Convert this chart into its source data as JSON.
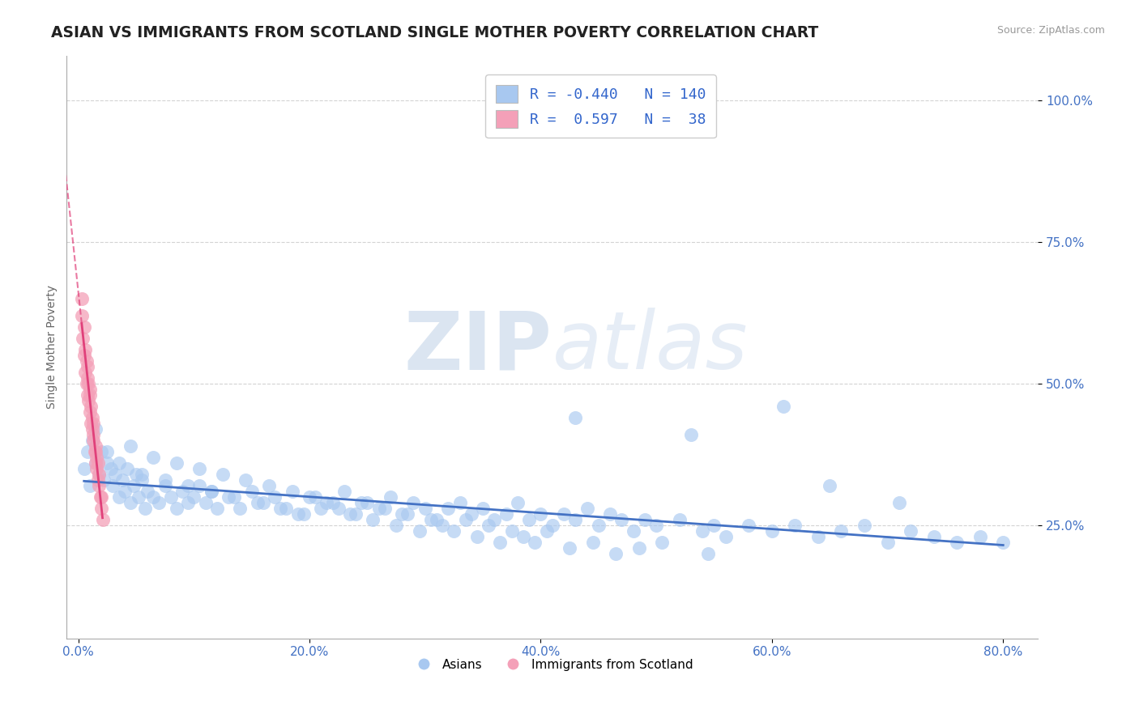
{
  "title": "ASIAN VS IMMIGRANTS FROM SCOTLAND SINGLE MOTHER POVERTY CORRELATION CHART",
  "source": "Source: ZipAtlas.com",
  "xlabel_ticks": [
    "0.0%",
    "20.0%",
    "40.0%",
    "60.0%",
    "80.0%"
  ],
  "xlabel_tick_vals": [
    0.0,
    0.2,
    0.4,
    0.6,
    0.8
  ],
  "ylabel": "Single Mother Poverty",
  "ylabel_ticks": [
    "25.0%",
    "50.0%",
    "75.0%",
    "100.0%"
  ],
  "ylabel_tick_vals": [
    0.25,
    0.5,
    0.75,
    1.0
  ],
  "xlim": [
    -0.01,
    0.83
  ],
  "ylim": [
    0.05,
    1.08
  ],
  "blue_R": -0.44,
  "blue_N": 140,
  "pink_R": 0.597,
  "pink_N": 38,
  "blue_color": "#a8c8f0",
  "pink_color": "#f4a0b8",
  "blue_line_color": "#4472c4",
  "pink_line_color": "#e0407a",
  "grid_color": "#c8c8c8",
  "bg_color": "#ffffff",
  "watermark_zip": "ZIP",
  "watermark_atlas": "atlas",
  "title_fontsize": 13.5,
  "axis_label_fontsize": 10,
  "tick_fontsize": 11,
  "legend_fontsize": 13,
  "blue_scatter_x": [
    0.005,
    0.008,
    0.01,
    0.012,
    0.015,
    0.018,
    0.02,
    0.022,
    0.025,
    0.028,
    0.03,
    0.032,
    0.035,
    0.038,
    0.04,
    0.042,
    0.045,
    0.048,
    0.05,
    0.052,
    0.055,
    0.058,
    0.06,
    0.065,
    0.07,
    0.075,
    0.08,
    0.085,
    0.09,
    0.095,
    0.1,
    0.105,
    0.11,
    0.115,
    0.12,
    0.13,
    0.14,
    0.15,
    0.16,
    0.17,
    0.18,
    0.19,
    0.2,
    0.21,
    0.22,
    0.23,
    0.24,
    0.25,
    0.26,
    0.27,
    0.28,
    0.29,
    0.3,
    0.31,
    0.32,
    0.33,
    0.34,
    0.35,
    0.36,
    0.37,
    0.38,
    0.39,
    0.4,
    0.41,
    0.42,
    0.43,
    0.44,
    0.45,
    0.46,
    0.47,
    0.48,
    0.49,
    0.5,
    0.52,
    0.54,
    0.55,
    0.56,
    0.58,
    0.6,
    0.62,
    0.64,
    0.66,
    0.68,
    0.7,
    0.72,
    0.74,
    0.76,
    0.78,
    0.8,
    0.015,
    0.025,
    0.035,
    0.045,
    0.055,
    0.065,
    0.075,
    0.085,
    0.095,
    0.105,
    0.115,
    0.125,
    0.135,
    0.145,
    0.155,
    0.165,
    0.175,
    0.185,
    0.195,
    0.205,
    0.215,
    0.225,
    0.235,
    0.245,
    0.255,
    0.265,
    0.275,
    0.285,
    0.295,
    0.305,
    0.315,
    0.325,
    0.335,
    0.345,
    0.355,
    0.365,
    0.375,
    0.385,
    0.395,
    0.405,
    0.425,
    0.445,
    0.465,
    0.485,
    0.505,
    0.545,
    0.43,
    0.53,
    0.61,
    0.65,
    0.71
  ],
  "blue_scatter_y": [
    0.35,
    0.38,
    0.32,
    0.4,
    0.36,
    0.34,
    0.38,
    0.33,
    0.36,
    0.35,
    0.32,
    0.34,
    0.3,
    0.33,
    0.31,
    0.35,
    0.29,
    0.32,
    0.34,
    0.3,
    0.33,
    0.28,
    0.31,
    0.3,
    0.29,
    0.32,
    0.3,
    0.28,
    0.31,
    0.29,
    0.3,
    0.32,
    0.29,
    0.31,
    0.28,
    0.3,
    0.28,
    0.31,
    0.29,
    0.3,
    0.28,
    0.27,
    0.3,
    0.28,
    0.29,
    0.31,
    0.27,
    0.29,
    0.28,
    0.3,
    0.27,
    0.29,
    0.28,
    0.26,
    0.28,
    0.29,
    0.27,
    0.28,
    0.26,
    0.27,
    0.29,
    0.26,
    0.27,
    0.25,
    0.27,
    0.26,
    0.28,
    0.25,
    0.27,
    0.26,
    0.24,
    0.26,
    0.25,
    0.26,
    0.24,
    0.25,
    0.23,
    0.25,
    0.24,
    0.25,
    0.23,
    0.24,
    0.25,
    0.22,
    0.24,
    0.23,
    0.22,
    0.23,
    0.22,
    0.42,
    0.38,
    0.36,
    0.39,
    0.34,
    0.37,
    0.33,
    0.36,
    0.32,
    0.35,
    0.31,
    0.34,
    0.3,
    0.33,
    0.29,
    0.32,
    0.28,
    0.31,
    0.27,
    0.3,
    0.29,
    0.28,
    0.27,
    0.29,
    0.26,
    0.28,
    0.25,
    0.27,
    0.24,
    0.26,
    0.25,
    0.24,
    0.26,
    0.23,
    0.25,
    0.22,
    0.24,
    0.23,
    0.22,
    0.24,
    0.21,
    0.22,
    0.2,
    0.21,
    0.22,
    0.2,
    0.44,
    0.41,
    0.46,
    0.32,
    0.29
  ],
  "pink_scatter_x": [
    0.003,
    0.004,
    0.005,
    0.005,
    0.006,
    0.007,
    0.007,
    0.008,
    0.008,
    0.009,
    0.009,
    0.01,
    0.01,
    0.011,
    0.011,
    0.012,
    0.012,
    0.013,
    0.013,
    0.014,
    0.015,
    0.015,
    0.016,
    0.016,
    0.017,
    0.017,
    0.018,
    0.019,
    0.02,
    0.021,
    0.003,
    0.006,
    0.008,
    0.01,
    0.013,
    0.015,
    0.018,
    0.02
  ],
  "pink_scatter_y": [
    0.62,
    0.58,
    0.55,
    0.6,
    0.52,
    0.5,
    0.54,
    0.48,
    0.51,
    0.47,
    0.5,
    0.45,
    0.48,
    0.43,
    0.46,
    0.42,
    0.44,
    0.4,
    0.43,
    0.38,
    0.36,
    0.39,
    0.35,
    0.37,
    0.33,
    0.36,
    0.32,
    0.3,
    0.28,
    0.26,
    0.65,
    0.56,
    0.53,
    0.49,
    0.41,
    0.38,
    0.34,
    0.3
  ]
}
